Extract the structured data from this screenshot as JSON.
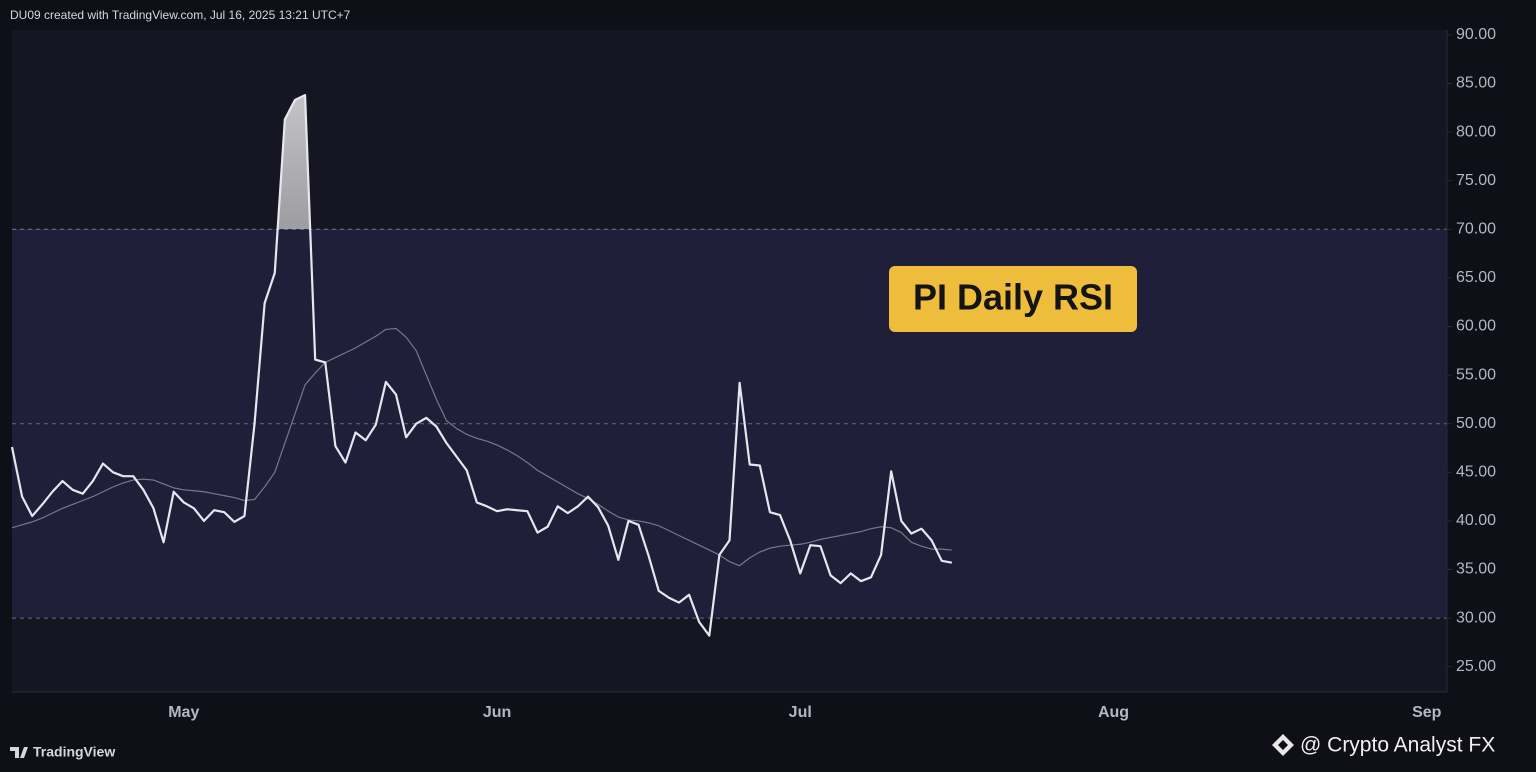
{
  "header": "DU09 created with TradingView.com, Jul 16, 2025 13:21 UTC+7",
  "footer": "TradingView",
  "watermark": "@ Crypto Analyst FX",
  "chart_data": {
    "type": "line",
    "annotation": "PI Daily RSI",
    "categories": [
      null,
      null,
      null,
      null,
      null,
      null,
      null,
      null,
      null,
      null,
      null,
      null,
      null,
      null,
      null,
      null,
      null,
      "May",
      null,
      null,
      null,
      null,
      null,
      null,
      null,
      null,
      null,
      null,
      null,
      null,
      null,
      null,
      null,
      null,
      null,
      null,
      null,
      null,
      null,
      null,
      null,
      null,
      null,
      null,
      null,
      null,
      null,
      null,
      "Jun",
      null,
      null,
      null,
      null,
      null,
      null,
      null,
      null,
      null,
      null,
      null,
      null,
      null,
      null,
      null,
      null,
      null,
      null,
      null,
      null,
      null,
      null,
      null,
      null,
      null,
      null,
      null,
      null,
      null,
      "Jul",
      null,
      null,
      null,
      null,
      null,
      null,
      null,
      null,
      null,
      null,
      null,
      null,
      null,
      null,
      null,
      null,
      null,
      null,
      null,
      null,
      null,
      null,
      null,
      null,
      null,
      null,
      null,
      null,
      null,
      null,
      "Aug",
      null,
      null,
      null,
      null,
      null,
      null,
      null,
      null,
      null,
      null,
      null,
      null,
      null,
      null,
      null,
      null,
      null,
      null,
      null,
      null,
      null,
      null,
      null,
      null,
      null,
      null,
      null,
      null,
      null,
      null,
      "Sep",
      null,
      null
    ],
    "series": [
      {
        "color": "#e6e6ee",
        "values": [
          47.6,
          42.5,
          40.5,
          41.7,
          43.0,
          44.1,
          43.2,
          42.8,
          44.1,
          45.9,
          45.0,
          44.6,
          44.6,
          43.2,
          41.3,
          37.8,
          43.0,
          41.9,
          41.3,
          40.0,
          41.1,
          40.9,
          39.9,
          40.5,
          50.0,
          62.4,
          65.5,
          81.3,
          83.3,
          83.8,
          56.6,
          56.3,
          47.7,
          46.0,
          49.1,
          48.3,
          49.9,
          54.3,
          53.0,
          48.6,
          50.0,
          50.6,
          49.7,
          48.0,
          46.6,
          45.2,
          41.9,
          41.5,
          41.0,
          41.2,
          41.1,
          41.0,
          38.8,
          39.4,
          41.5,
          40.8,
          41.5,
          42.5,
          41.4,
          39.5,
          36.0,
          40.0,
          39.6,
          36.4,
          32.8,
          32.1,
          31.6,
          32.4,
          29.6,
          28.2,
          36.5,
          38.0,
          54.2,
          45.8,
          45.7,
          40.9,
          40.6,
          38.0,
          34.6,
          37.5,
          37.4,
          34.4,
          33.6,
          34.6,
          33.8,
          34.2,
          36.5,
          45.1,
          40.0,
          38.7,
          39.2,
          38.0,
          35.9,
          35.7,
          null,
          null,
          null,
          null,
          null,
          null,
          null,
          null,
          null,
          null,
          null,
          null,
          null,
          null,
          null,
          null,
          null,
          null,
          null,
          null,
          null,
          null,
          null,
          null,
          null,
          null,
          null,
          null,
          null,
          null,
          null,
          null,
          null,
          null,
          null,
          null,
          null,
          null,
          null,
          null,
          null,
          null,
          null,
          null,
          null,
          null,
          null,
          null,
          null
        ]
      },
      {
        "color": "#77778a",
        "values": [
          39.3,
          39.6,
          39.9,
          40.3,
          40.8,
          41.3,
          41.7,
          42.1,
          42.5,
          43.0,
          43.5,
          43.9,
          44.2,
          44.3,
          44.2,
          43.8,
          43.4,
          43.2,
          43.1,
          43.0,
          42.8,
          42.6,
          42.4,
          42.1,
          42.2,
          43.5,
          45.0,
          48.0,
          51.0,
          54.0,
          55.2,
          56.3,
          56.8,
          57.3,
          57.8,
          58.4,
          59.0,
          59.7,
          59.8,
          58.9,
          57.5,
          55.0,
          52.5,
          50.3,
          49.5,
          48.9,
          48.5,
          48.2,
          47.8,
          47.3,
          46.7,
          46.0,
          45.2,
          44.6,
          44.0,
          43.4,
          42.8,
          42.3,
          41.7,
          41.0,
          40.4,
          40.1,
          40.0,
          39.8,
          39.5,
          39.0,
          38.5,
          38.0,
          37.5,
          37.0,
          36.5,
          35.8,
          35.4,
          36.2,
          36.8,
          37.2,
          37.4,
          37.5,
          37.6,
          37.8,
          38.1,
          38.3,
          38.5,
          38.7,
          38.9,
          39.2,
          39.4,
          39.3,
          38.8,
          37.8,
          37.4,
          37.1,
          37.1,
          37.0,
          null,
          null,
          null,
          null,
          null,
          null,
          null,
          null,
          null,
          null,
          null,
          null,
          null,
          null,
          null,
          null,
          null,
          null,
          null,
          null,
          null,
          null,
          null,
          null,
          null,
          null,
          null,
          null,
          null,
          null,
          null,
          null,
          null,
          null,
          null,
          null,
          null,
          null,
          null,
          null,
          null,
          null,
          null,
          null,
          null,
          null,
          null,
          null,
          null
        ]
      }
    ],
    "levels": [
      70,
      50,
      30
    ],
    "ylim": [
      22.4,
      90.5
    ],
    "yticks": [
      {
        "value": 90,
        "label": "90.00"
      },
      {
        "value": 85,
        "label": "85.00"
      },
      {
        "value": 80,
        "label": "80.00"
      },
      {
        "value": 75,
        "label": "75.00"
      },
      {
        "value": 70,
        "label": "70.00"
      },
      {
        "value": 65,
        "label": "65.00"
      },
      {
        "value": 60,
        "label": "60.00"
      },
      {
        "value": 55,
        "label": "55.00"
      },
      {
        "value": 50,
        "label": "50.00"
      },
      {
        "value": 45,
        "label": "45.00"
      },
      {
        "value": 40,
        "label": "40.00"
      },
      {
        "value": 35,
        "label": "35.00"
      },
      {
        "value": 30,
        "label": "30.00"
      },
      {
        "value": 25,
        "label": "25.00"
      }
    ]
  }
}
